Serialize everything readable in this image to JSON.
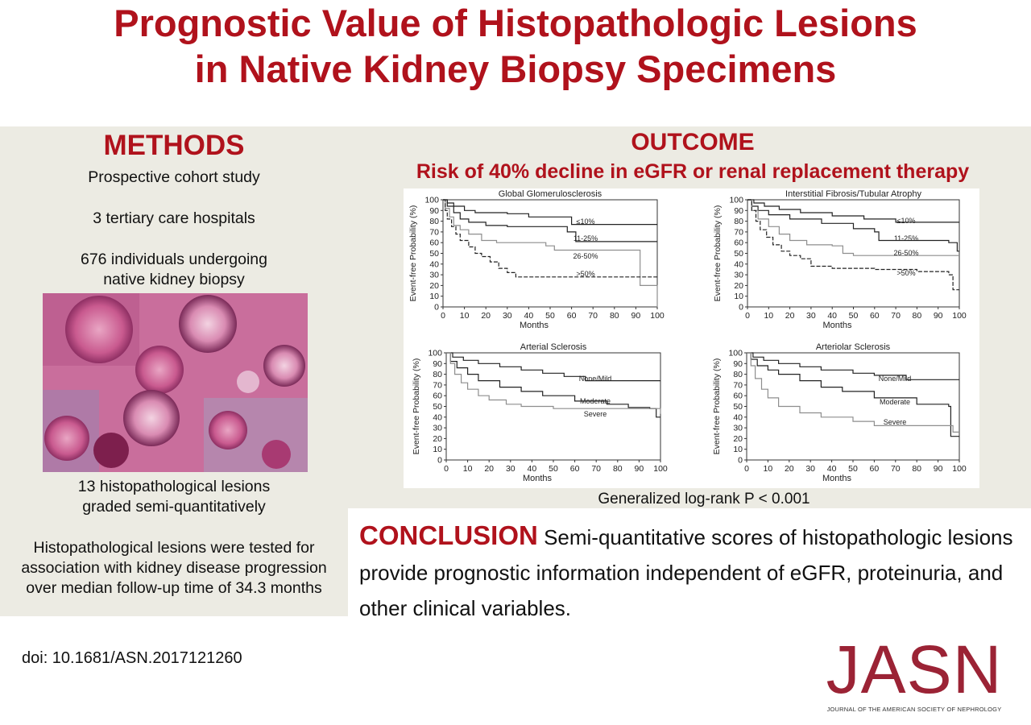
{
  "title": {
    "line1": "Prognostic Value of Histopathologic Lesions",
    "line2": "in Native Kidney Biopsy Specimens"
  },
  "methods": {
    "heading": "METHODS",
    "line1": "Prospective cohort study",
    "line2": "3 tertiary care hospitals",
    "line3a": "676 individuals undergoing",
    "line3b": "native kidney biopsy",
    "line4a": "13 histopathological lesions",
    "line4b": "graded semi-quantitatively",
    "line5a": "Histopathological lesions were tested for",
    "line5b": "association with kidney disease progression",
    "line5c": "over median follow-up time of 34.3 months"
  },
  "outcome": {
    "heading": "OUTCOME",
    "subheading": "Risk of 40% decline in eGFR or renal replacement therapy",
    "pvalue": "Generalized log-rank P < 0.001"
  },
  "conclusion": {
    "label": "CONCLUSION",
    "text": " Semi-quantitative scores of histopathologic lesions provide prognostic information independent of eGFR, proteinuria, and other clinical variables."
  },
  "footer": {
    "doi": "doi: 10.1681/ASN.2017121260",
    "logo": "JASN",
    "logo_sub": "JOURNAL OF THE AMERICAN SOCIETY OF NEPHROLOGY"
  },
  "colors": {
    "accent": "#b0121c",
    "panel": "#ecebe3",
    "logo": "#9b2335"
  },
  "chart_data": [
    {
      "type": "line",
      "title": "Global Glomerulosclerosis",
      "xlabel": "Months",
      "ylabel": "Event-free Probability (%)",
      "xlim": [
        0,
        100
      ],
      "ylim": [
        0,
        100
      ],
      "xticks": [
        0,
        10,
        20,
        30,
        40,
        50,
        60,
        70,
        80,
        90,
        100
      ],
      "yticks": [
        0,
        10,
        20,
        30,
        40,
        50,
        60,
        70,
        80,
        90,
        100
      ],
      "series": [
        {
          "name": "≤10%",
          "style": "solid-dark",
          "x": [
            0,
            2,
            5,
            10,
            15,
            30,
            40,
            50,
            60,
            62,
            100
          ],
          "y": [
            100,
            97,
            94,
            90,
            88,
            87,
            84,
            84,
            77,
            77,
            77
          ]
        },
        {
          "name": "11-25%",
          "style": "solid-dark",
          "x": [
            0,
            2,
            5,
            8,
            12,
            20,
            30,
            40,
            58,
            62,
            100
          ],
          "y": [
            100,
            94,
            88,
            82,
            79,
            76,
            75,
            75,
            70,
            61,
            61
          ]
        },
        {
          "name": "26-50%",
          "style": "solid-gray",
          "x": [
            0,
            1,
            3,
            5,
            8,
            12,
            18,
            25,
            48,
            52,
            88,
            92,
            100
          ],
          "y": [
            100,
            92,
            84,
            76,
            72,
            68,
            62,
            60,
            57,
            53,
            53,
            20,
            0
          ]
        },
        {
          "name": ">50%",
          "style": "dashed",
          "x": [
            0,
            1,
            2,
            4,
            6,
            8,
            12,
            15,
            18,
            22,
            26,
            30,
            34,
            100
          ],
          "y": [
            100,
            90,
            82,
            75,
            68,
            62,
            56,
            50,
            47,
            42,
            36,
            32,
            28,
            28
          ]
        }
      ]
    },
    {
      "type": "line",
      "title": "Interstitial Fibrosis/Tubular Atrophy",
      "xlabel": "Months",
      "ylabel": "Event-free Probability (%)",
      "xlim": [
        0,
        100
      ],
      "ylim": [
        0,
        100
      ],
      "xticks": [
        0,
        10,
        20,
        30,
        40,
        50,
        60,
        70,
        80,
        90,
        100
      ],
      "yticks": [
        0,
        10,
        20,
        30,
        40,
        50,
        60,
        70,
        80,
        90,
        100
      ],
      "series": [
        {
          "name": "≤10%",
          "style": "solid-dark",
          "x": [
            0,
            3,
            8,
            15,
            25,
            40,
            55,
            70,
            100
          ],
          "y": [
            100,
            97,
            94,
            91,
            88,
            85,
            82,
            79,
            79
          ]
        },
        {
          "name": "11-25%",
          "style": "solid-dark",
          "x": [
            0,
            2,
            5,
            10,
            20,
            35,
            50,
            60,
            62,
            95,
            99,
            100
          ],
          "y": [
            100,
            94,
            90,
            86,
            82,
            78,
            73,
            70,
            62,
            60,
            52,
            52
          ]
        },
        {
          "name": "26-50%",
          "style": "solid-gray",
          "x": [
            0,
            2,
            5,
            10,
            15,
            20,
            28,
            40,
            45,
            50,
            100
          ],
          "y": [
            100,
            90,
            82,
            75,
            68,
            62,
            58,
            57,
            50,
            48,
            48
          ]
        },
        {
          "name": ">50%",
          "style": "dashed",
          "x": [
            0,
            2,
            4,
            6,
            9,
            12,
            16,
            20,
            25,
            30,
            40,
            60,
            80,
            95,
            97,
            100
          ],
          "y": [
            100,
            90,
            80,
            72,
            65,
            58,
            52,
            48,
            45,
            38,
            36,
            35,
            33,
            30,
            16,
            16
          ]
        }
      ]
    },
    {
      "type": "line",
      "title": "Arterial Sclerosis",
      "xlabel": "Months",
      "ylabel": "Event-free Probability (%)",
      "xlim": [
        0,
        100
      ],
      "ylim": [
        0,
        100
      ],
      "xticks": [
        0,
        10,
        20,
        30,
        40,
        50,
        60,
        70,
        80,
        90,
        100
      ],
      "yticks": [
        0,
        10,
        20,
        30,
        40,
        50,
        60,
        70,
        80,
        90,
        100
      ],
      "series": [
        {
          "name": "None/Mild",
          "style": "solid-dark",
          "x": [
            0,
            3,
            8,
            15,
            25,
            35,
            45,
            55,
            65,
            100
          ],
          "y": [
            100,
            96,
            93,
            90,
            87,
            84,
            81,
            78,
            74,
            74
          ]
        },
        {
          "name": "Moderate",
          "style": "solid-dark",
          "x": [
            0,
            2,
            5,
            10,
            15,
            25,
            35,
            45,
            60,
            75,
            85,
            95,
            98,
            100
          ],
          "y": [
            100,
            92,
            86,
            80,
            74,
            68,
            64,
            60,
            55,
            52,
            49,
            48,
            40,
            40
          ]
        },
        {
          "name": "Severe",
          "style": "solid-gray",
          "x": [
            0,
            2,
            4,
            7,
            10,
            15,
            20,
            28,
            35,
            50,
            95,
            100
          ],
          "y": [
            100,
            90,
            80,
            72,
            66,
            60,
            56,
            52,
            50,
            48,
            48,
            43
          ]
        }
      ]
    },
    {
      "type": "line",
      "title": "Arteriolar Sclerosis",
      "xlabel": "Months",
      "ylabel": "Event-free Probability (%)",
      "xlim": [
        0,
        100
      ],
      "ylim": [
        0,
        100
      ],
      "xticks": [
        0,
        10,
        20,
        30,
        40,
        50,
        60,
        70,
        80,
        90,
        100
      ],
      "yticks": [
        0,
        10,
        20,
        30,
        40,
        50,
        60,
        70,
        80,
        90,
        100
      ],
      "series": [
        {
          "name": "None/Mild",
          "style": "solid-dark",
          "x": [
            0,
            3,
            8,
            15,
            25,
            35,
            50,
            60,
            75,
            100
          ],
          "y": [
            100,
            96,
            93,
            90,
            87,
            84,
            81,
            79,
            75,
            75
          ]
        },
        {
          "name": "Moderate",
          "style": "solid-dark",
          "x": [
            0,
            2,
            5,
            10,
            15,
            25,
            35,
            45,
            60,
            80,
            95,
            96,
            100
          ],
          "y": [
            100,
            94,
            88,
            84,
            80,
            74,
            68,
            64,
            58,
            52,
            50,
            22,
            22
          ]
        },
        {
          "name": "Severe",
          "style": "solid-gray",
          "x": [
            0,
            2,
            4,
            7,
            10,
            15,
            25,
            35,
            50,
            60,
            95,
            97,
            100
          ],
          "y": [
            100,
            88,
            76,
            66,
            58,
            50,
            44,
            40,
            36,
            32,
            32,
            26,
            26
          ]
        }
      ]
    }
  ]
}
